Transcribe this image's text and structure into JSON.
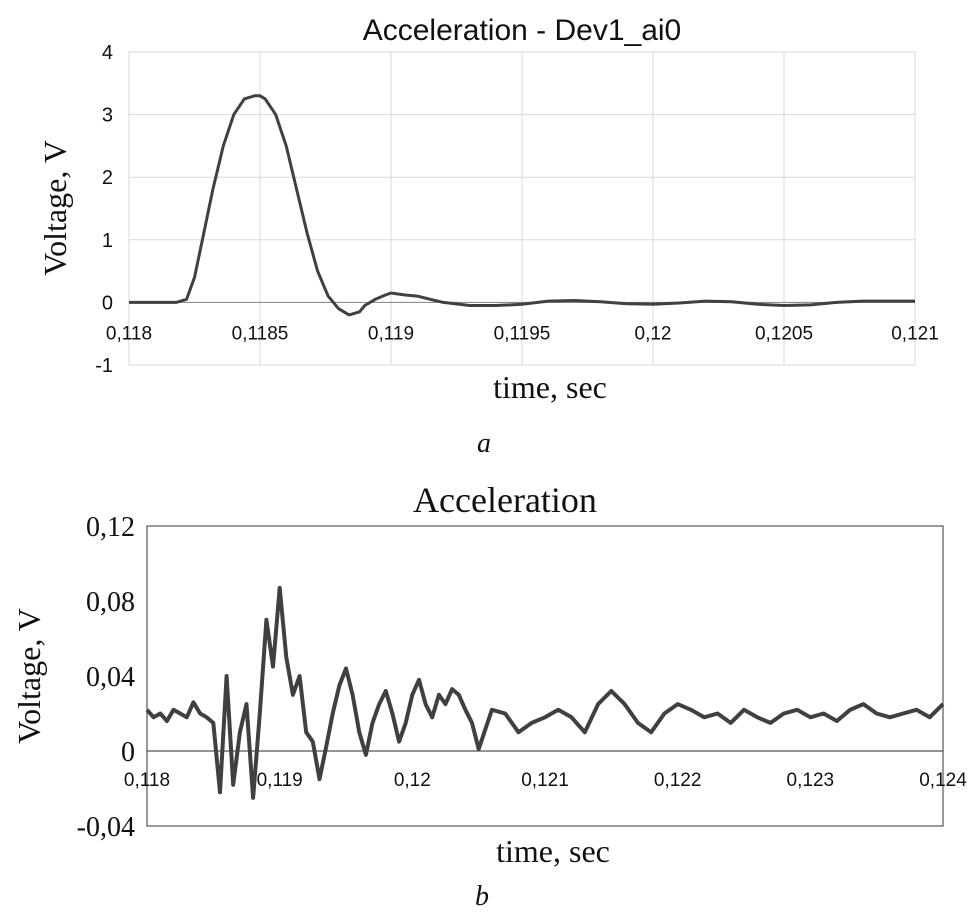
{
  "chart_data": [
    {
      "type": "line",
      "panel_label": "a",
      "title": "Acceleration - Dev1_ai0",
      "xlabel": "time, sec",
      "ylabel": "Voltage, V",
      "xlim": [
        0.118,
        0.121
      ],
      "ylim": [
        -1,
        4
      ],
      "x_ticks": [
        0.118,
        0.1185,
        0.119,
        0.1195,
        0.12,
        0.1205,
        0.121
      ],
      "x_tick_labels": [
        "0,118",
        "0,1185",
        "0,119",
        "0,1195",
        "0,12",
        "0,1205",
        "0,121"
      ],
      "y_ticks": [
        -1,
        0,
        1,
        2,
        3,
        4
      ],
      "y_tick_labels": [
        "-1",
        "0",
        "1",
        "2",
        "3",
        "4"
      ],
      "grid": true,
      "line_color": "#404040",
      "series": [
        {
          "x": [
            0.118,
            0.11805,
            0.1181,
            0.11815,
            0.11818,
            0.11822,
            0.11825,
            0.11828,
            0.11832,
            0.11836,
            0.1184,
            0.11844,
            0.11848,
            0.1185,
            0.11852,
            0.11856,
            0.1186,
            0.11864,
            0.11868,
            0.11872,
            0.11876,
            0.1188,
            0.11884,
            0.11888,
            0.1189,
            0.11894,
            0.11898,
            0.119,
            0.11905,
            0.1191,
            0.11915,
            0.1192,
            0.1193,
            0.1194,
            0.1195,
            0.1196,
            0.1197,
            0.1198,
            0.1199,
            0.12,
            0.1201,
            0.1202,
            0.1203,
            0.1204,
            0.1205,
            0.1206,
            0.1207,
            0.1208,
            0.1209,
            0.121
          ],
          "y": [
            0.0,
            0.0,
            0.0,
            0.0,
            0.0,
            0.05,
            0.4,
            1.0,
            1.8,
            2.5,
            3.0,
            3.25,
            3.3,
            3.3,
            3.25,
            3.0,
            2.5,
            1.8,
            1.1,
            0.5,
            0.1,
            -0.1,
            -0.2,
            -0.15,
            -0.05,
            0.05,
            0.12,
            0.15,
            0.12,
            0.1,
            0.05,
            0.0,
            -0.05,
            -0.05,
            -0.03,
            0.02,
            0.03,
            0.01,
            -0.02,
            -0.03,
            -0.01,
            0.02,
            0.01,
            -0.03,
            -0.05,
            -0.04,
            0.0,
            0.02,
            0.02,
            0.02
          ]
        }
      ]
    },
    {
      "type": "line",
      "panel_label": "b",
      "title": "Acceleration",
      "xlabel": "time, sec",
      "ylabel": "Voltage, V",
      "xlim": [
        0.118,
        0.124
      ],
      "ylim": [
        -0.04,
        0.12
      ],
      "x_ticks": [
        0.118,
        0.119,
        0.12,
        0.121,
        0.122,
        0.123,
        0.124
      ],
      "x_tick_labels": [
        "0,118",
        "0,119",
        "0,12",
        "0,121",
        "0,122",
        "0,123",
        "0,124"
      ],
      "y_ticks": [
        -0.04,
        0,
        0.04,
        0.08,
        0.12
      ],
      "y_tick_labels": [
        "-0,04",
        "0",
        "0,04",
        "0,08",
        "0,12"
      ],
      "grid": false,
      "line_color": "#404040",
      "series": [
        {
          "x": [
            0.118,
            0.11805,
            0.1181,
            0.11815,
            0.1182,
            0.11825,
            0.1183,
            0.11835,
            0.1184,
            0.11845,
            0.1185,
            0.11855,
            0.1186,
            0.11865,
            0.1187,
            0.11875,
            0.1188,
            0.11885,
            0.1189,
            0.11895,
            0.119,
            0.11905,
            0.1191,
            0.11915,
            0.1192,
            0.11925,
            0.1193,
            0.11935,
            0.1194,
            0.11945,
            0.1195,
            0.11955,
            0.1196,
            0.11965,
            0.1197,
            0.11975,
            0.1198,
            0.11985,
            0.1199,
            0.11995,
            0.12,
            0.12005,
            0.1201,
            0.12015,
            0.1202,
            0.12025,
            0.1203,
            0.12035,
            0.1204,
            0.12045,
            0.1205,
            0.1206,
            0.1207,
            0.1208,
            0.1209,
            0.121,
            0.1211,
            0.1212,
            0.1213,
            0.1214,
            0.1215,
            0.1216,
            0.1217,
            0.1218,
            0.1219,
            0.122,
            0.1221,
            0.1222,
            0.1223,
            0.1224,
            0.1225,
            0.1226,
            0.1227,
            0.1228,
            0.1229,
            0.123,
            0.1231,
            0.1232,
            0.1233,
            0.1234,
            0.1235,
            0.1236,
            0.1237,
            0.1238,
            0.1239,
            0.124
          ],
          "y": [
            0.022,
            0.018,
            0.02,
            0.016,
            0.022,
            0.02,
            0.018,
            0.026,
            0.02,
            0.018,
            0.015,
            -0.022,
            0.04,
            -0.018,
            0.01,
            0.025,
            -0.025,
            0.02,
            0.07,
            0.045,
            0.087,
            0.05,
            0.03,
            0.04,
            0.01,
            0.005,
            -0.015,
            0.002,
            0.02,
            0.035,
            0.044,
            0.03,
            0.01,
            -0.002,
            0.015,
            0.025,
            0.032,
            0.02,
            0.005,
            0.015,
            0.03,
            0.038,
            0.025,
            0.018,
            0.03,
            0.025,
            0.033,
            0.03,
            0.022,
            0.015,
            0.001,
            0.022,
            0.02,
            0.01,
            0.015,
            0.018,
            0.022,
            0.018,
            0.01,
            0.025,
            0.032,
            0.025,
            0.015,
            0.01,
            0.02,
            0.025,
            0.022,
            0.018,
            0.02,
            0.015,
            0.022,
            0.018,
            0.015,
            0.02,
            0.022,
            0.018,
            0.02,
            0.016,
            0.022,
            0.025,
            0.02,
            0.018,
            0.02,
            0.022,
            0.018,
            0.025
          ]
        }
      ]
    }
  ]
}
